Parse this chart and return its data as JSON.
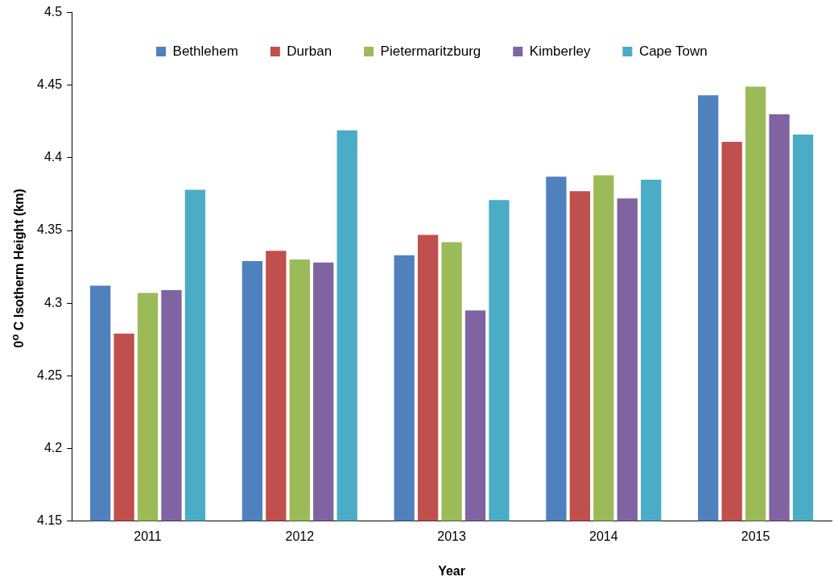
{
  "chart_data": {
    "type": "bar",
    "xlabel": "Year",
    "ylabel": "0$^{o}$ C Isotherm Height (km)",
    "categories": [
      "2011",
      "2012",
      "2013",
      "2014",
      "2015"
    ],
    "series": [
      {
        "name": "Bethlehem",
        "color": "#4f81bd",
        "values": [
          4.312,
          4.329,
          4.333,
          4.387,
          4.443
        ]
      },
      {
        "name": "Durban",
        "color": "#c0504d",
        "values": [
          4.279,
          4.336,
          4.347,
          4.377,
          4.411
        ]
      },
      {
        "name": "Pietermaritzburg",
        "color": "#9bbb59",
        "values": [
          4.307,
          4.33,
          4.342,
          4.388,
          4.449
        ]
      },
      {
        "name": "Kimberley",
        "color": "#8064a2",
        "values": [
          4.309,
          4.328,
          4.295,
          4.372,
          4.43
        ]
      },
      {
        "name": "Cape Town",
        "color": "#4bacc6",
        "values": [
          4.378,
          4.419,
          4.371,
          4.385,
          4.416
        ]
      }
    ],
    "ylim": [
      4.15,
      4.5
    ],
    "yticks": [
      4.15,
      4.2,
      4.25,
      4.3,
      4.35,
      4.4,
      4.45,
      4.5
    ],
    "grid": false,
    "legend": "top"
  }
}
